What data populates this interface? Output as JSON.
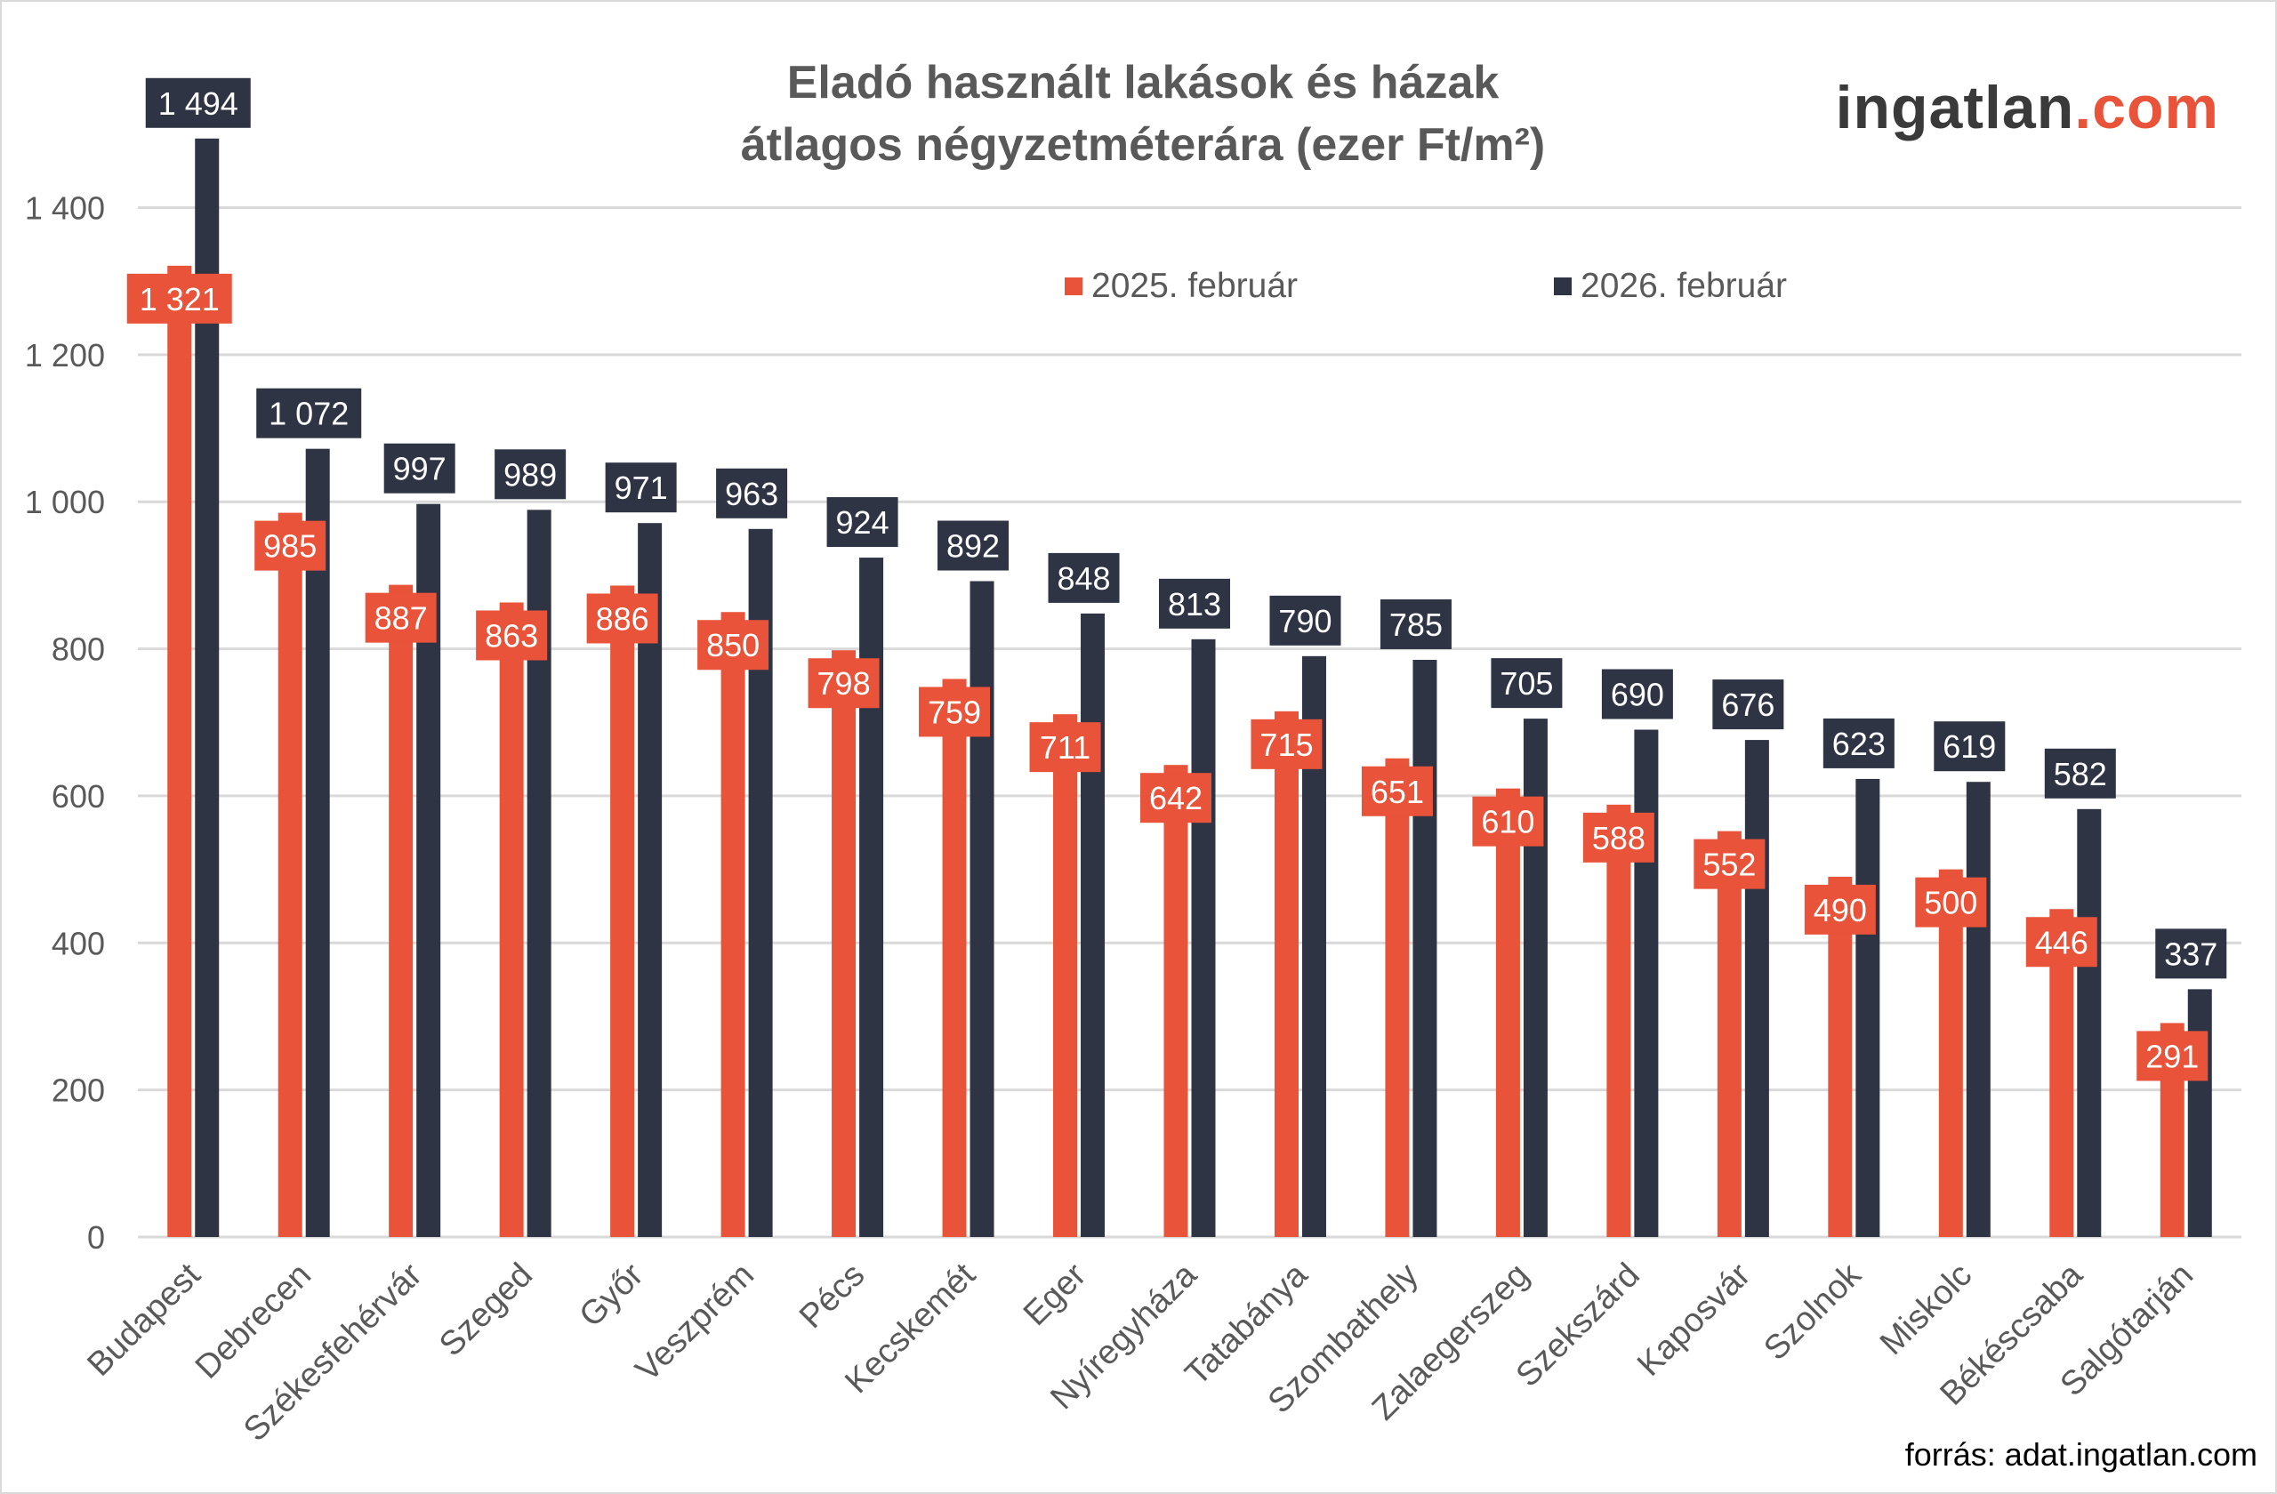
{
  "title_lines": [
    "Eladó használt lakások és házak",
    "átlagos négyzetméterára (ezer Ft/m²)"
  ],
  "logo": {
    "main": "ingatlan",
    "suffix": ".com"
  },
  "source": "forrás: adat.ingatlan.com",
  "colors": {
    "series_2025": "#E8533A",
    "series_2026": "#2E3444",
    "text": "#595959",
    "grid": "#D9D9D9"
  },
  "chart_data": {
    "type": "bar",
    "title": "Eladó használt lakások és házak átlagos négyzetméterára (ezer Ft/m²)",
    "categories": [
      "Budapest",
      "Debrecen",
      "Székesfehérvár",
      "Szeged",
      "Győr",
      "Veszprém",
      "Pécs",
      "Kecskemét",
      "Eger",
      "Nyíregyháza",
      "Tatabánya",
      "Szombathely",
      "Zalaegerszeg",
      "Szekszárd",
      "Kaposvár",
      "Szolnok",
      "Miskolc",
      "Békéscsaba",
      "Salgótarján"
    ],
    "series": [
      {
        "name": "2025. február",
        "values": [
          1321,
          985,
          887,
          863,
          886,
          850,
          798,
          759,
          711,
          642,
          715,
          651,
          610,
          588,
          552,
          490,
          500,
          446,
          291
        ]
      },
      {
        "name": "2026. február",
        "values": [
          1494,
          1072,
          997,
          989,
          971,
          963,
          924,
          892,
          848,
          813,
          790,
          785,
          705,
          690,
          676,
          623,
          619,
          582,
          337
        ]
      }
    ],
    "ylim": [
      0,
      1400
    ],
    "yticks": [
      0,
      200,
      400,
      600,
      800,
      1000,
      1200,
      1400
    ],
    "ytick_labels": [
      "0",
      "200",
      "400",
      "600",
      "800",
      "1 000",
      "1 200",
      "1 400"
    ],
    "grid": true,
    "legend_placement": "top-center",
    "xlabel": "",
    "ylabel": ""
  }
}
